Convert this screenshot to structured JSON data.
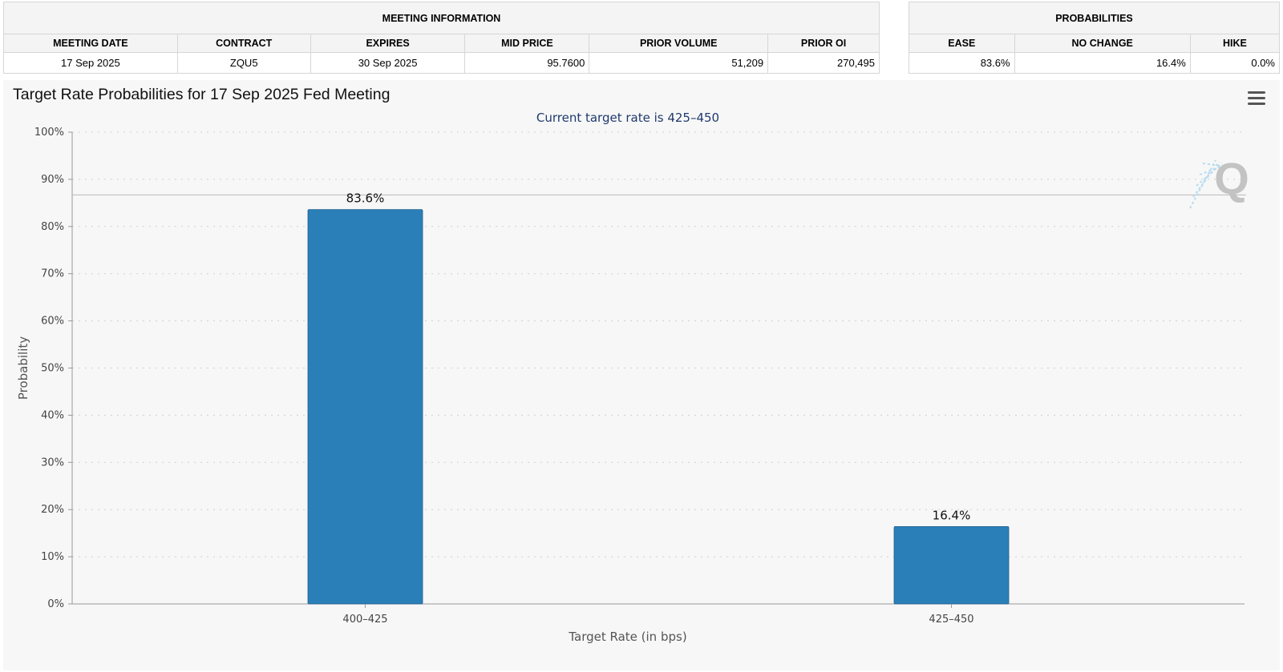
{
  "meeting_information": {
    "heading": "MEETING INFORMATION",
    "columns": [
      "MEETING DATE",
      "CONTRACT",
      "EXPIRES",
      "MID PRICE",
      "PRIOR VOLUME",
      "PRIOR OI"
    ],
    "values": [
      "17 Sep 2025",
      "ZQU5",
      "30 Sep 2025",
      "95.7600",
      "51,209",
      "270,495"
    ]
  },
  "probabilities": {
    "heading": "PROBABILITIES",
    "columns": [
      "EASE",
      "NO CHANGE",
      "HIKE"
    ],
    "values": [
      "83.6%",
      "16.4%",
      "0.0%"
    ]
  },
  "chart_data": {
    "type": "bar",
    "title": "Target Rate Probabilities for 17 Sep 2025 Fed Meeting",
    "subtitle": "Current target rate is 425–450",
    "xlabel": "Target Rate (in bps)",
    "ylabel": "Probability",
    "categories": [
      "400–425",
      "425–450"
    ],
    "values": [
      83.6,
      16.4
    ],
    "data_labels": [
      "83.6%",
      "16.4%"
    ],
    "ylim": [
      0,
      100
    ],
    "yticks": [
      0,
      10,
      20,
      30,
      40,
      50,
      60,
      70,
      80,
      90,
      100
    ],
    "ytick_labels": [
      "0%",
      "10%",
      "20%",
      "30%",
      "40%",
      "50%",
      "60%",
      "70%",
      "80%",
      "90%",
      "100%"
    ],
    "grid": true,
    "legend": "none",
    "bar_color": "#2a7fb8",
    "reference_line": 86.7
  },
  "watermark": "Q",
  "menu_icon": "hamburger-menu-icon",
  "colors": {
    "bar": "#2a7fb8",
    "subtitle": "#1f3a6e",
    "panel": "#f7f7f7"
  }
}
